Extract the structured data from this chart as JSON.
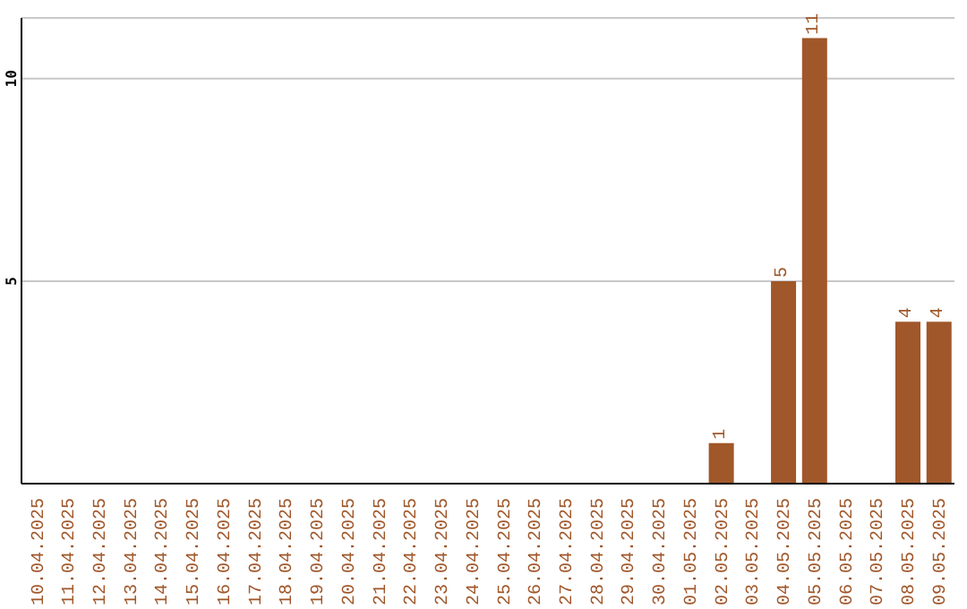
{
  "chart_data": {
    "type": "bar",
    "categories": [
      "10.04.2025",
      "11.04.2025",
      "12.04.2025",
      "13.04.2025",
      "14.04.2025",
      "15.04.2025",
      "16.04.2025",
      "17.04.2025",
      "18.04.2025",
      "19.04.2025",
      "20.04.2025",
      "21.04.2025",
      "22.04.2025",
      "23.04.2025",
      "24.04.2025",
      "25.04.2025",
      "26.04.2025",
      "27.04.2025",
      "28.04.2025",
      "29.04.2025",
      "30.04.2025",
      "01.05.2025",
      "02.05.2025",
      "03.05.2025",
      "04.05.2025",
      "05.05.2025",
      "06.05.2025",
      "07.05.2025",
      "08.05.2025",
      "09.05.2025"
    ],
    "values": [
      0,
      0,
      0,
      0,
      0,
      0,
      0,
      0,
      0,
      0,
      0,
      0,
      0,
      0,
      0,
      0,
      0,
      0,
      0,
      0,
      0,
      0,
      1,
      0,
      5,
      11,
      0,
      0,
      4,
      4
    ],
    "value_labels": [
      null,
      null,
      null,
      null,
      null,
      null,
      null,
      null,
      null,
      null,
      null,
      null,
      null,
      null,
      null,
      null,
      null,
      null,
      null,
      null,
      null,
      null,
      "1",
      null,
      "5",
      "11",
      null,
      null,
      "4",
      "4"
    ],
    "color": "#a0572a",
    "ylim": [
      0,
      11.5
    ],
    "yticks": [
      5,
      10
    ],
    "grid": "y"
  }
}
